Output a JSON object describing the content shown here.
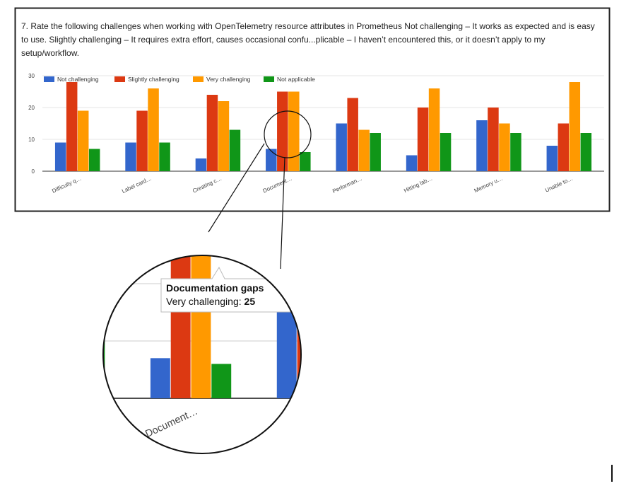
{
  "chart_data": {
    "type": "bar",
    "title": "7. Rate the following challenges when working with OpenTelemetry resource attributes in Prometheus    Not challenging – It works as expected and is easy to use.  Slightly challenging – It requires extra effort, causes occasional confu...plicable – I haven’t encountered this, or it doesn’t apply to my setup/workflow.",
    "categories": [
      "Difficulty q…",
      "Label card…",
      "Creating c…",
      "Document…",
      "Performan…",
      "Hitting lab…",
      "Memory u…",
      "Unable to…"
    ],
    "series": [
      {
        "name": "Not challenging",
        "color": "#3366cc",
        "values": [
          9,
          9,
          4,
          7,
          15,
          5,
          16,
          8
        ]
      },
      {
        "name": "Slightly challenging",
        "color": "#dc3912",
        "values": [
          28,
          19,
          24,
          25,
          23,
          20,
          20,
          15
        ]
      },
      {
        "name": "Very challenging",
        "color": "#ff9900",
        "values": [
          19,
          26,
          22,
          25,
          13,
          26,
          15,
          28
        ]
      },
      {
        "name": "Not applicable",
        "color": "#109618",
        "values": [
          7,
          9,
          13,
          6,
          12,
          12,
          12,
          12
        ]
      }
    ],
    "ylim": [
      0,
      30
    ],
    "yticks": [
      0,
      10,
      20,
      30
    ],
    "grid": true,
    "legend": "top",
    "tooltip": {
      "title": "Documentation gaps",
      "label": "Very challenging:",
      "value": 25
    }
  }
}
